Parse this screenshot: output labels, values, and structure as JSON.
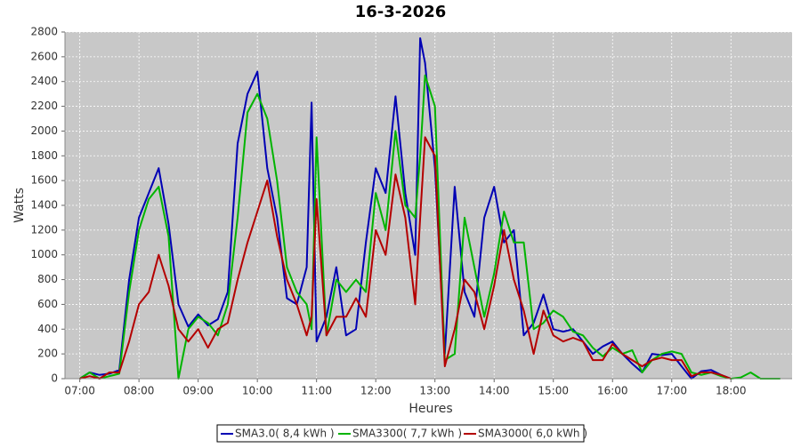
{
  "chart_data": {
    "type": "line",
    "title": "16-3-2026",
    "x_label": "Heures",
    "y_label": "Watts",
    "x": [
      "07:00",
      "07:10",
      "07:20",
      "07:30",
      "07:40",
      "07:50",
      "08:00",
      "08:10",
      "08:20",
      "08:30",
      "08:40",
      "08:50",
      "09:00",
      "09:10",
      "09:20",
      "09:30",
      "09:40",
      "09:50",
      "10:00",
      "10:10",
      "10:20",
      "10:30",
      "10:40",
      "10:50",
      "10:55",
      "11:00",
      "11:10",
      "11:20",
      "11:30",
      "11:40",
      "11:50",
      "12:00",
      "12:10",
      "12:20",
      "12:30",
      "12:40",
      "12:45",
      "12:50",
      "13:00",
      "13:10",
      "13:20",
      "13:30",
      "13:40",
      "13:50",
      "14:00",
      "14:10",
      "14:20",
      "14:30",
      "14:40",
      "14:50",
      "15:00",
      "15:10",
      "15:20",
      "15:30",
      "15:40",
      "15:50",
      "16:00",
      "16:10",
      "16:20",
      "16:30",
      "16:40",
      "16:50",
      "17:00",
      "17:10",
      "17:20",
      "17:30",
      "17:40",
      "17:50",
      "18:00",
      "18:10",
      "18:20",
      "18:30",
      "18:40",
      "18:50"
    ],
    "series": [
      {
        "name": "SMA3.0( 8,4 kWh )",
        "color": "#0000b4",
        "values": [
          0,
          50,
          30,
          40,
          70,
          800,
          1300,
          1500,
          1700,
          1250,
          600,
          420,
          520,
          430,
          480,
          700,
          1900,
          2300,
          2480,
          1700,
          1300,
          650,
          600,
          900,
          2230,
          300,
          500,
          900,
          350,
          400,
          1100,
          1700,
          1500,
          2280,
          1500,
          1000,
          2750,
          2550,
          1700,
          200,
          1550,
          700,
          500,
          1300,
          1550,
          1100,
          1200,
          350,
          450,
          680,
          400,
          380,
          400,
          300,
          200,
          260,
          300,
          200,
          120,
          50,
          200,
          190,
          200,
          100,
          0,
          60,
          70,
          30,
          0,
          null,
          null,
          null,
          null,
          null
        ]
      },
      {
        "name": "SMA3300( 7,7 kWh )",
        "color": "#00b400",
        "values": [
          0,
          50,
          0,
          20,
          40,
          700,
          1200,
          1450,
          1550,
          1150,
          0,
          400,
          500,
          450,
          350,
          600,
          1300,
          2150,
          2300,
          2100,
          1600,
          900,
          700,
          600,
          400,
          1950,
          350,
          800,
          700,
          800,
          700,
          1500,
          1200,
          2000,
          1400,
          1300,
          1800,
          2450,
          2200,
          150,
          200,
          1300,
          900,
          500,
          850,
          1350,
          1100,
          1100,
          400,
          450,
          550,
          500,
          380,
          350,
          250,
          180,
          250,
          200,
          230,
          50,
          150,
          200,
          220,
          200,
          50,
          30,
          50,
          20,
          0,
          10,
          50,
          0,
          0,
          0
        ]
      },
      {
        "name": "SMA3000( 6,0 kWh )",
        "color": "#b40000",
        "values": [
          0,
          20,
          0,
          50,
          50,
          300,
          600,
          700,
          1000,
          750,
          400,
          300,
          400,
          250,
          400,
          450,
          800,
          1100,
          1350,
          1600,
          1150,
          800,
          600,
          350,
          500,
          1450,
          350,
          500,
          500,
          650,
          500,
          1200,
          1000,
          1650,
          1300,
          600,
          1300,
          1950,
          1800,
          100,
          400,
          800,
          700,
          400,
          750,
          1200,
          800,
          550,
          200,
          550,
          350,
          300,
          330,
          300,
          150,
          150,
          280,
          200,
          150,
          100,
          150,
          170,
          150,
          150,
          20,
          50,
          50,
          30,
          0,
          null,
          null,
          null,
          null,
          null
        ]
      }
    ],
    "xlim": [
      "06:45",
      "19:02"
    ],
    "xticks": [
      "07:00",
      "08:00",
      "09:00",
      "10:00",
      "11:00",
      "12:00",
      "13:00",
      "14:00",
      "15:00",
      "16:00",
      "17:00",
      "18:00"
    ],
    "ylim": [
      0,
      2800
    ],
    "yticks": [
      0,
      200,
      400,
      600,
      800,
      1000,
      1200,
      1400,
      1600,
      1800,
      2000,
      2200,
      2400,
      2600,
      2800
    ],
    "grid": true,
    "legend": "bottom"
  }
}
